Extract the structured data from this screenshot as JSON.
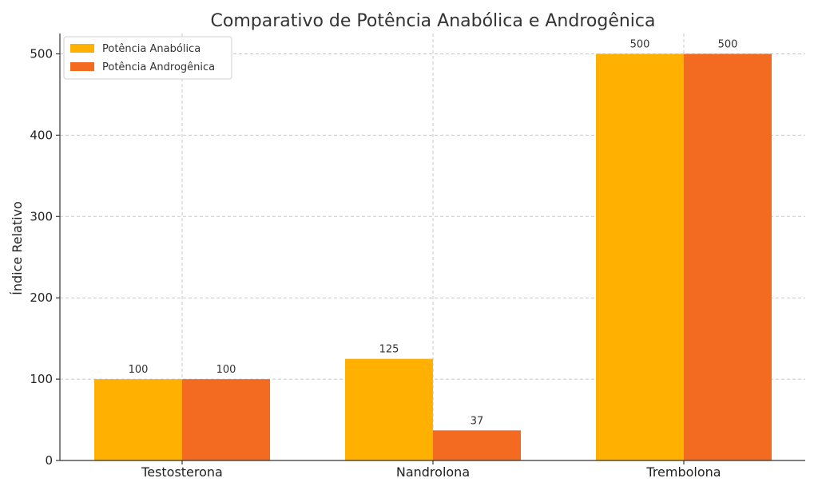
{
  "chart_data": {
    "type": "bar",
    "title": "Comparativo de Potência Anabólica e Androgênica",
    "xlabel": "",
    "ylabel": "Índice Relativo",
    "categories": [
      "Testosterona",
      "Nandrolona",
      "Trembolona"
    ],
    "series": [
      {
        "name": "Potência Anabólica",
        "values": [
          100,
          125,
          500
        ],
        "color": "#FFB000"
      },
      {
        "name": "Potência Androgênica",
        "values": [
          100,
          37,
          500
        ],
        "color": "#F26B21"
      }
    ],
    "ylim": [
      0,
      525
    ],
    "yticks": [
      0,
      100,
      200,
      300,
      400,
      500
    ],
    "grid": true,
    "legend": "top-left",
    "data_labels": true
  }
}
